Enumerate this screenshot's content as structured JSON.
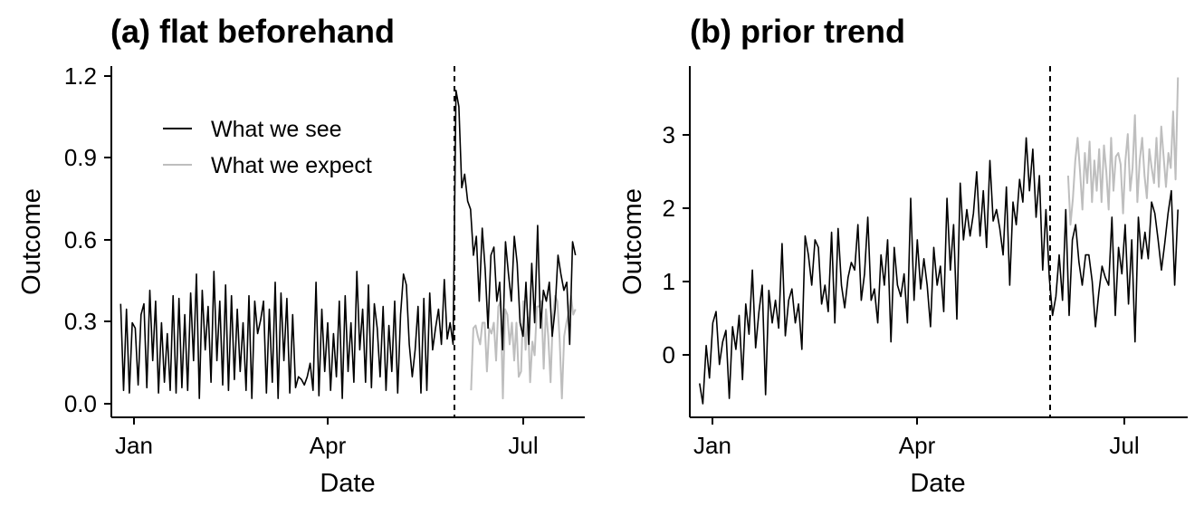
{
  "chart_data": [
    {
      "type": "line",
      "title": "(a) flat beforehand",
      "xlabel": "Date",
      "ylabel": "Outcome",
      "x_ticks": [
        "Jan",
        "Apr",
        "Jul"
      ],
      "y_ticks": [
        "0.0",
        "0.3",
        "0.6",
        "0.9",
        "1.2"
      ],
      "ylim": [
        -0.05,
        1.25
      ],
      "xlim": [
        "2021-12-28",
        "2022-07-20"
      ],
      "intervention_date": "2022-06-01",
      "legend": {
        "placement": "top-left",
        "entries": [
          "What we see",
          "What we expect"
        ]
      },
      "series": [
        {
          "name": "What we see",
          "color": "#000000",
          "x_start": "2022-01-01",
          "x_end": "2022-07-16",
          "values": [
            0.37,
            0.05,
            0.35,
            0.04,
            0.3,
            0.28,
            0.07,
            0.33,
            0.37,
            0.06,
            0.42,
            0.16,
            0.38,
            0.04,
            0.3,
            0.08,
            0.26,
            0.05,
            0.4,
            0.04,
            0.39,
            0.06,
            0.33,
            0.05,
            0.41,
            0.16,
            0.48,
            0.02,
            0.42,
            0.2,
            0.36,
            0.08,
            0.49,
            0.16,
            0.38,
            0.07,
            0.44,
            0.05,
            0.4,
            0.09,
            0.35,
            0.12,
            0.3,
            0.05,
            0.4,
            0.02,
            0.38,
            0.26,
            0.31,
            0.38,
            0.04,
            0.35,
            0.08,
            0.45,
            0.02,
            0.41,
            0.16,
            0.39,
            0.04,
            0.33,
            0.06,
            0.1,
            0.09,
            0.07,
            0.1,
            0.15,
            0.05,
            0.45,
            0.03,
            0.35,
            0.12,
            0.3,
            0.05,
            0.26,
            0.1,
            0.38,
            0.02,
            0.4,
            0.12,
            0.3,
            0.08,
            0.49,
            0.2,
            0.35,
            0.08,
            0.44,
            0.06,
            0.37,
            0.28,
            0.1,
            0.36,
            0.05,
            0.29,
            0.12,
            0.38,
            0.04,
            0.33,
            0.48,
            0.44,
            0.22,
            0.1,
            0.2,
            0.36,
            0.04,
            0.39,
            0.05,
            0.41,
            0.2,
            0.28,
            0.35,
            0.22,
            0.46,
            0.24,
            0.3,
            0.22,
            1.16,
            1.1,
            0.8,
            0.85,
            0.75,
            0.72,
            0.55,
            0.62,
            0.38,
            0.65,
            0.5,
            0.28,
            0.55,
            0.58,
            0.38,
            0.45,
            0.2,
            0.6,
            0.48,
            0.38,
            0.62,
            0.52,
            0.3,
            0.25,
            0.45,
            0.22,
            0.52,
            0.3,
            0.66,
            0.28,
            0.42,
            0.38,
            0.45,
            0.25,
            0.35,
            0.55,
            0.48,
            0.42,
            0.45,
            0.22,
            0.6,
            0.55
          ]
        },
        {
          "name": "What we expect",
          "color": "#bebebe",
          "x_start": "2022-06-01",
          "x_end": "2022-07-16",
          "values": [
            0.05,
            0.28,
            0.29,
            0.25,
            0.22,
            0.3,
            0.3,
            0.12,
            0.28,
            0.26,
            0.3,
            0.16,
            0.36,
            0.38,
            0.02,
            0.35,
            0.33,
            0.22,
            0.3,
            0.16,
            0.3,
            0.1,
            0.12,
            0.38,
            0.2,
            0.32,
            0.08,
            0.23,
            0.18,
            0.36,
            0.36,
            0.38,
            0.13,
            0.35,
            0.25,
            0.08,
            0.32,
            0.4,
            0.38,
            0.24,
            0.02,
            0.25,
            0.3,
            0.34,
            0.4,
            0.33,
            0.35
          ]
        }
      ]
    },
    {
      "type": "line",
      "title": "(b) prior trend",
      "xlabel": "Date",
      "ylabel": "Outcome",
      "x_ticks": [
        "Jan",
        "Apr",
        "Jul"
      ],
      "y_ticks": [
        "0",
        "1",
        "2",
        "3"
      ],
      "ylim": [
        -0.8,
        3.85
      ],
      "xlim": [
        "2021-12-28",
        "2022-07-20"
      ],
      "intervention_date": "2022-06-01",
      "series": [
        {
          "name": "What we see",
          "color": "#000000",
          "x_start": "2022-01-01",
          "x_end": "2022-07-16",
          "values": [
            -0.35,
            -0.62,
            0.15,
            -0.28,
            0.45,
            0.6,
            -0.1,
            0.2,
            0.35,
            -0.55,
            0.4,
            0.1,
            0.55,
            -0.3,
            0.7,
            0.3,
            1.15,
            0.12,
            0.6,
            0.95,
            -0.5,
            0.88,
            0.45,
            0.75,
            0.38,
            1.5,
            0.28,
            0.75,
            0.9,
            0.45,
            0.7,
            0.1,
            1.6,
            1.35,
            0.95,
            1.55,
            1.45,
            0.7,
            0.95,
            0.6,
            1.65,
            0.45,
            1.7,
            0.95,
            0.65,
            1.05,
            1.25,
            1.15,
            1.75,
            0.75,
            1.1,
            1.85,
            0.75,
            0.9,
            0.45,
            1.35,
            0.95,
            1.55,
            0.2,
            1.45,
            0.95,
            0.8,
            1.1,
            0.45,
            2.1,
            0.75,
            1.55,
            0.9,
            1.3,
            0.95,
            0.4,
            1.45,
            0.95,
            1.2,
            0.6,
            2.1,
            1.15,
            1.75,
            0.5,
            2.3,
            1.55,
            1.95,
            1.6,
            1.9,
            2.45,
            1.6,
            2.2,
            1.45,
            2.6,
            1.8,
            1.95,
            1.7,
            1.35,
            2.25,
            0.95,
            2.05,
            1.75,
            2.35,
            2.05,
            2.9,
            2.2,
            2.75,
            1.85,
            2.4,
            1.15,
            1.95,
            1.05,
            0.55,
            0.8,
            1.35,
            0.75,
            1.95,
            0.55,
            1.55,
            1.75,
            1.25,
            0.95,
            1.35,
            1.35,
            1.0,
            0.4,
            0.85,
            1.2,
            1.05,
            0.95,
            1.85,
            0.55,
            1.45,
            1.1,
            1.75,
            0.7,
            1.55,
            0.2,
            1.85,
            1.3,
            1.65,
            1.3,
            2.05,
            1.9,
            1.55,
            1.15,
            1.5,
            1.9,
            2.2,
            0.95,
            1.95
          ]
        },
        {
          "name": "What we expect",
          "color": "#bebebe",
          "x_start": "2022-06-01",
          "x_end": "2022-07-16",
          "values": [
            2.4,
            1.75,
            2.1,
            2.6,
            2.9,
            2.45,
            1.95,
            2.7,
            2.3,
            2.85,
            2.05,
            2.6,
            2.2,
            2.75,
            2.05,
            2.8,
            2.45,
            1.95,
            2.9,
            2.2,
            2.65,
            2.7,
            2.55,
            1.9,
            2.6,
            2.95,
            2.2,
            2.5,
            3.2,
            2.05,
            2.6,
            2.9,
            2.4,
            2.1,
            2.75,
            2.5,
            2.3,
            2.9,
            2.25,
            3.05,
            2.65,
            2.25,
            2.7,
            2.5,
            3.25,
            2.35,
            3.7
          ]
        }
      ]
    }
  ]
}
